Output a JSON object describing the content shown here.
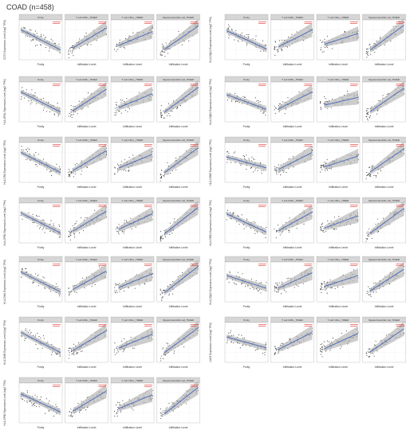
{
  "title": "COAD (n=458)",
  "facet_titles": [
    "Purity",
    "T cell CD8+_TIMER",
    "T cell CD4+_TIMER",
    "Myeloid dendritic cell_TIMER"
  ],
  "y_axis_suffix": "Expression Level (log2 TPM)",
  "x_label_purity": "Purity",
  "x_label_infiltration": "Infiltration Level",
  "colors": {
    "point": "#333333",
    "fit": "#4f6fb8",
    "band": "#b8b8b8",
    "strip": "#d6d6d6",
    "stat": "#e0302a"
  },
  "chart_data": [
    {
      "type": "scatter",
      "gene": "CD74",
      "slopes": [
        -0.55,
        0.65,
        0.45,
        0.75
      ]
    },
    {
      "type": "scatter",
      "gene": "HLA-DQA1",
      "slopes": [
        -0.5,
        0.55,
        0.35,
        0.8
      ]
    },
    {
      "type": "scatter",
      "gene": "HLA-DPA1",
      "slopes": [
        -0.55,
        0.7,
        0.45,
        0.8
      ]
    },
    {
      "type": "scatter",
      "gene": "HLA-DQB1",
      "slopes": [
        -0.4,
        0.55,
        0.25,
        0.75
      ]
    },
    {
      "type": "scatter",
      "gene": "HLA-DRA",
      "slopes": [
        -0.55,
        0.65,
        0.45,
        0.8
      ]
    },
    {
      "type": "scatter",
      "gene": "HLA-DRB5",
      "slopes": [
        -0.3,
        0.55,
        0.35,
        0.75
      ]
    },
    {
      "type": "scatter",
      "gene": "HLA-DPB1",
      "slopes": [
        -0.55,
        0.65,
        0.5,
        0.85
      ]
    },
    {
      "type": "scatter",
      "gene": "HLA-DRB1",
      "slopes": [
        -0.5,
        0.6,
        0.4,
        0.8
      ]
    },
    {
      "type": "scatter",
      "gene": "HLA-DMA",
      "slopes": [
        -0.55,
        0.6,
        0.45,
        0.85
      ]
    },
    {
      "type": "scatter",
      "gene": "HLA-DQA2",
      "slopes": [
        -0.35,
        0.5,
        0.35,
        0.7
      ]
    },
    {
      "type": "scatter",
      "gene": "HLA-DMB",
      "slopes": [
        -0.55,
        0.65,
        0.45,
        0.8
      ]
    },
    {
      "type": "scatter",
      "gene": "LAG3",
      "slopes": [
        -0.3,
        0.55,
        0.5,
        0.75
      ]
    },
    {
      "type": "scatter",
      "gene": "HLA-DPB2",
      "slopes": [
        -0.5,
        0.65,
        0.45,
        0.85
      ]
    }
  ]
}
